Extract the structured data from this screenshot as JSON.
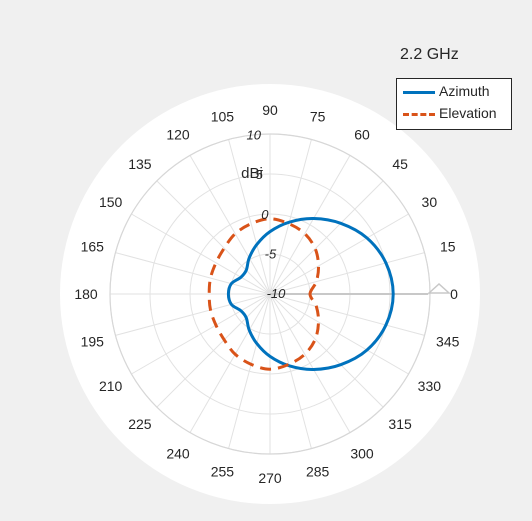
{
  "chart_data": {
    "type": "polar-line",
    "title": "2.2 GHz",
    "radial_unit_label": "dBi",
    "radial_range": [
      -10,
      10
    ],
    "radial_ticks": [
      -10,
      -5,
      0,
      5,
      10
    ],
    "radial_tick_labels": [
      "-10",
      "-5",
      "0",
      "5",
      "10"
    ],
    "angle_ticks_deg": [
      0,
      15,
      30,
      45,
      60,
      75,
      90,
      105,
      120,
      135,
      150,
      165,
      180,
      195,
      210,
      225,
      240,
      255,
      270,
      285,
      300,
      315,
      330,
      345
    ],
    "angle_tick_labels": [
      "0",
      "15",
      "30",
      "45",
      "60",
      "75",
      "90",
      "105",
      "120",
      "135",
      "150",
      "165",
      "180",
      "195",
      "210",
      "225",
      "240",
      "255",
      "270",
      "285",
      "300",
      "315",
      "330",
      "345"
    ],
    "grid": true,
    "legend_position": "top-right",
    "series": [
      {
        "name": "Azimuth",
        "color": "#0072BD",
        "style": "solid",
        "angles_deg": [
          0,
          15,
          30,
          45,
          60,
          75,
          90,
          105,
          120,
          135,
          150,
          165,
          180,
          195,
          210,
          225,
          240,
          255,
          270,
          285,
          300,
          315,
          330,
          345
        ],
        "values_dbi": [
          5.4,
          5.0,
          4.0,
          2.5,
          0.9,
          -0.7,
          -2.2,
          -3.6,
          -4.8,
          -5.8,
          -5.8,
          -5.0,
          -4.8,
          -5.0,
          -5.8,
          -5.8,
          -4.8,
          -3.6,
          -2.2,
          -0.7,
          0.9,
          2.5,
          4.0,
          5.0
        ]
      },
      {
        "name": "Elevation",
        "color": "#D95319",
        "style": "dashed",
        "angles_deg": [
          0,
          15,
          30,
          45,
          60,
          75,
          90,
          105,
          120,
          135,
          150,
          165,
          180,
          195,
          210,
          225,
          240,
          255,
          270,
          285,
          300,
          315,
          330,
          345
        ],
        "values_dbi": [
          -5.0,
          -4.0,
          -3.0,
          -2.0,
          -1.3,
          -0.9,
          -0.6,
          -0.9,
          -1.3,
          -1.9,
          -2.2,
          -2.3,
          -2.4,
          -2.3,
          -2.2,
          -1.9,
          -1.3,
          -0.9,
          -0.6,
          -0.9,
          -1.3,
          -2.0,
          -3.0,
          -4.0
        ]
      }
    ],
    "marker": {
      "angle_deg": 0,
      "shape": "triangle",
      "color": "#c8c8c8"
    }
  }
}
